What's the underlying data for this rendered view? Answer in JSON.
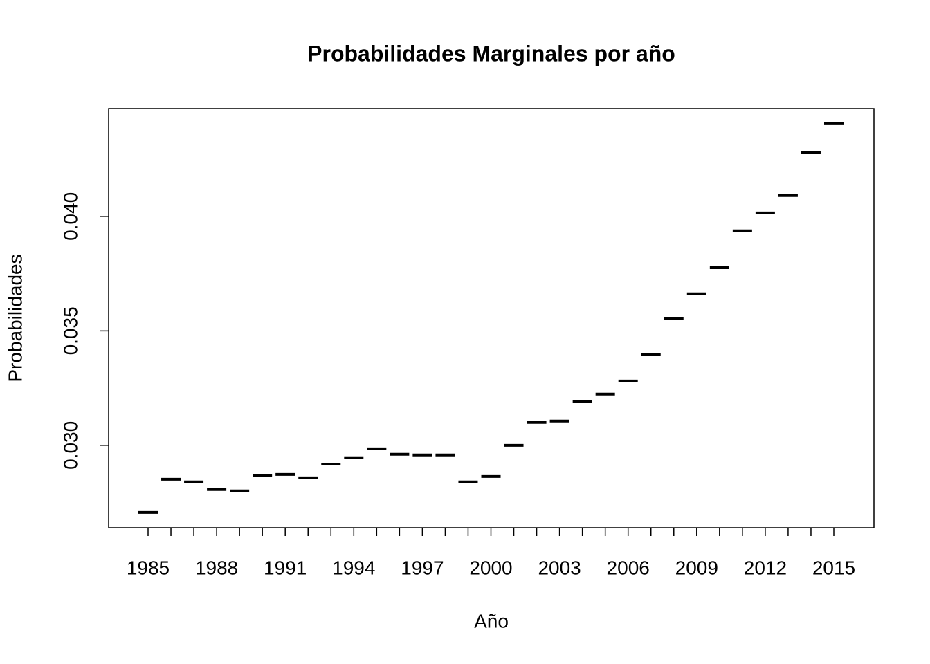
{
  "chart_data": {
    "type": "segment",
    "title": "Probabilidades Marginales por año",
    "x_label": "Año",
    "y_label": "Probabilidades",
    "categories": [
      "1985",
      null,
      null,
      "1988",
      null,
      null,
      "1991",
      null,
      null,
      "1994",
      null,
      null,
      "1997",
      null,
      null,
      "2000",
      null,
      null,
      "2003",
      null,
      null,
      "2006",
      null,
      null,
      "2009",
      null,
      null,
      "2012",
      null,
      null,
      "2015"
    ],
    "values": [
      0.02707,
      0.02852,
      0.0284,
      0.02807,
      0.02801,
      0.02867,
      0.02873,
      0.02858,
      0.02918,
      0.02946,
      0.02985,
      0.02961,
      0.02958,
      0.02958,
      0.0284,
      0.02864,
      0.03,
      0.031,
      0.03106,
      0.0319,
      0.03224,
      0.03281,
      0.03396,
      0.03553,
      0.03662,
      0.03776,
      0.03937,
      0.04015,
      0.04091,
      0.04278,
      0.04405
    ],
    "color": "#000000",
    "title_color": "#e00000",
    "ylim": [
      0.0264,
      0.04471
    ],
    "yticks": [
      {
        "value": 0.03,
        "label": "0.030"
      },
      {
        "value": 0.035,
        "label": "0.035"
      },
      {
        "value": 0.04,
        "label": "0.040"
      }
    ]
  }
}
